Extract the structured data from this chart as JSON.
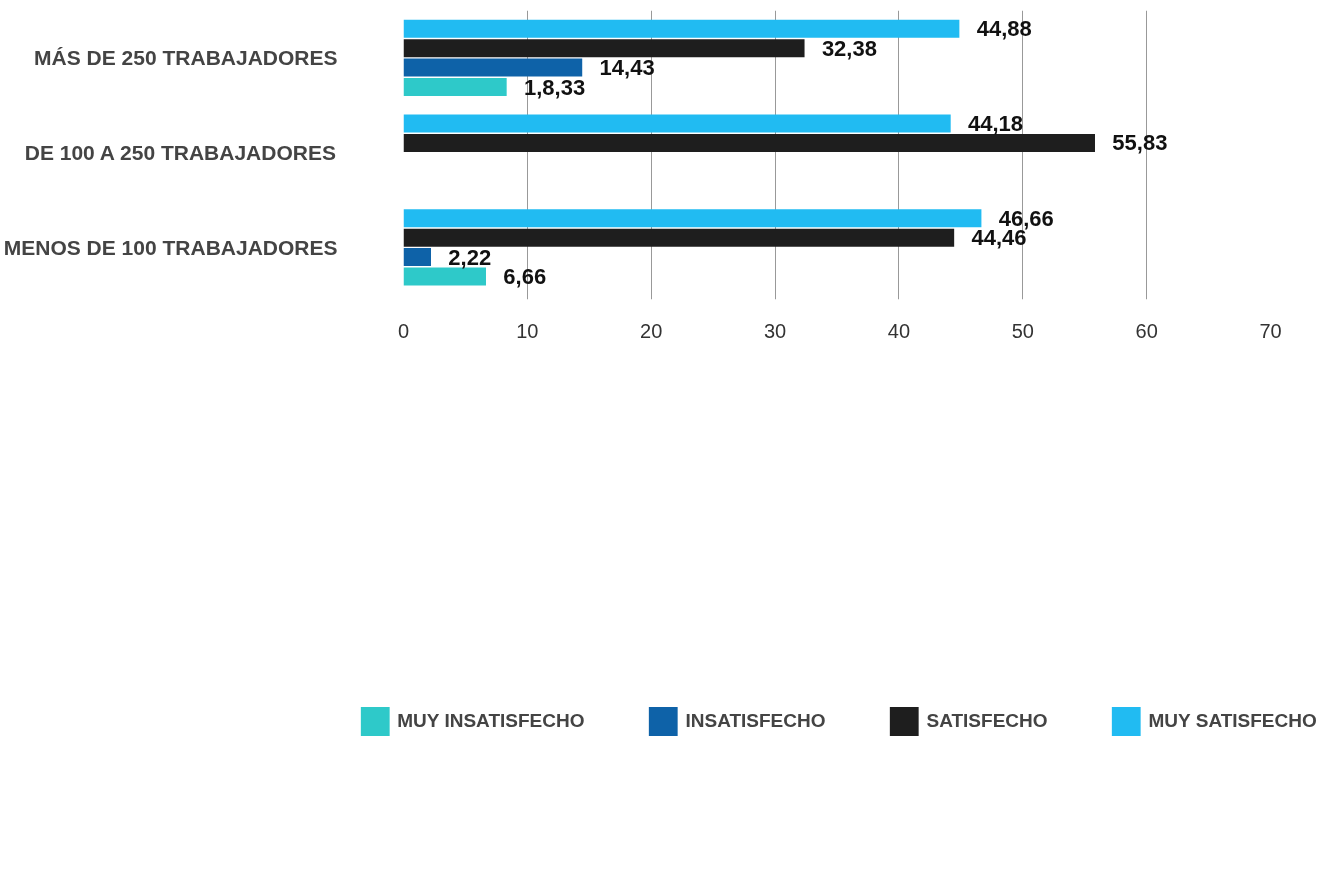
{
  "chart_data": {
    "type": "bar",
    "orientation": "horizontal",
    "categories": [
      "MÁS DE 250 TRABAJADORES",
      "DE 100 A 250 TRABAJADORES",
      "MENOS DE 100 TRABAJADORES"
    ],
    "series": [
      {
        "name": "MUY INSATISFECHO",
        "color": "#2ec9c9",
        "values": [
          8.33,
          null,
          6.66
        ],
        "value_labels": [
          "1,8,33",
          null,
          "6,66"
        ]
      },
      {
        "name": "INSATISFECHO",
        "color": "#0e62a8",
        "values": [
          14.43,
          null,
          2.22
        ],
        "value_labels": [
          "14,43",
          null,
          "2,22"
        ]
      },
      {
        "name": "SATISFECHO",
        "color": "#1e1e1e",
        "values": [
          32.38,
          55.83,
          44.46
        ],
        "value_labels": [
          "32,38",
          "55,83",
          "44,46"
        ]
      },
      {
        "name": "MUY SATISFECHO",
        "color": "#21bbf2",
        "values": [
          44.88,
          44.18,
          46.66
        ],
        "value_labels": [
          "44,88",
          "44,18",
          "46,66"
        ]
      }
    ],
    "xlim": [
      0,
      70
    ],
    "xticks": [
      0,
      10,
      20,
      30,
      40,
      50,
      60,
      70
    ],
    "grid": "x",
    "legend": "bottom"
  }
}
